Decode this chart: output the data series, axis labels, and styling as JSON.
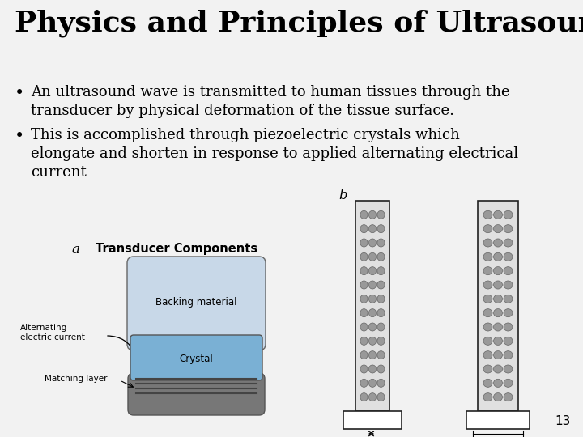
{
  "title": "Physics and Principles of Ultrasound",
  "title_fontsize": 26,
  "title_fontweight": "bold",
  "bullet1_line1": "An ultrasound wave is transmitted to human tissues through the",
  "bullet1_line2": "transducer by physical deformation of the tissue surface.",
  "bullet2_line1": "This is accomplished through piezoelectric crystals which",
  "bullet2_line2": "elongate and shorten in response to applied alternating electrical",
  "bullet2_line3": "current",
  "text_fontsize": 13,
  "background_color": "#f2f2f2",
  "text_color": "#000000",
  "page_number": "13",
  "backing_color": "#c8d8e8",
  "crystal_color": "#7ab0d4",
  "matching_color": "#aaaaaa",
  "bottom_cap_color": "#888888",
  "col_bg_color": "#e0e0e0",
  "dot_color": "#999999",
  "dot_edge_color": "#666666"
}
